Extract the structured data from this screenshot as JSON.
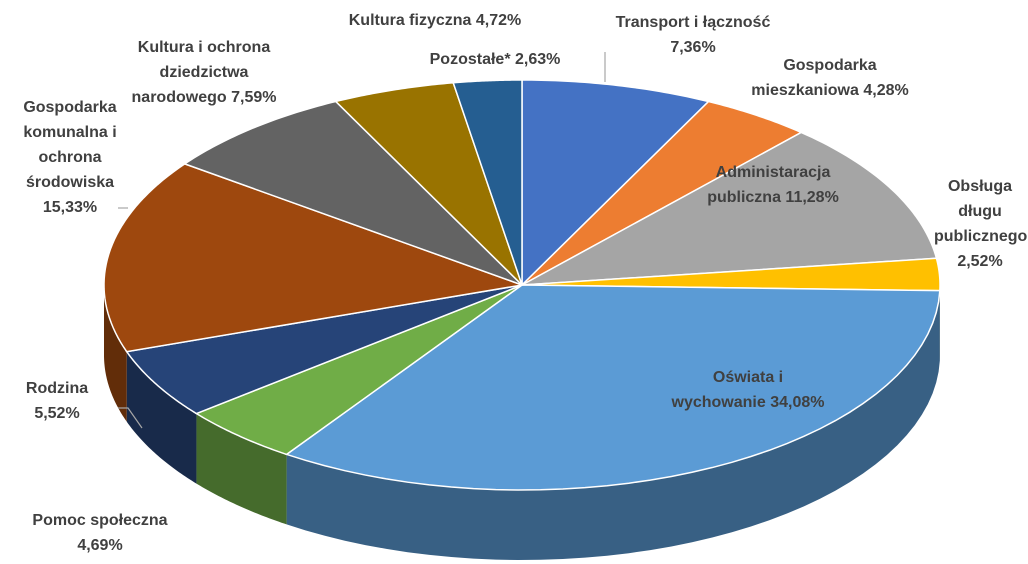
{
  "chart_data": {
    "type": "pie3d",
    "categories": [
      "Transport i łączność",
      "Gospodarka mieszkaniowa",
      "Administaracja publiczna",
      "Obsługa długu publicznego",
      "Oświata i wychowanie",
      "Pomoc społeczna",
      "Rodzina",
      "Gospodarka komunalna i ochrona środowiska",
      "Kultura i ochrona dziedzictwa narodowego",
      "Kultura fizyczna",
      "Pozostałe*"
    ],
    "values": [
      7.36,
      4.28,
      11.28,
      2.52,
      34.08,
      4.69,
      5.52,
      15.33,
      7.59,
      4.72,
      2.63
    ],
    "value_labels": [
      "7,36%",
      "4,28%",
      "11,28%",
      "2,52%",
      "34,08%",
      "4,69%",
      "5,52%",
      "15,33%",
      "7,59%",
      "4,72%",
      "2,63%"
    ],
    "colors": [
      "#4472c4",
      "#ed7d31",
      "#a5a5a5",
      "#ffc000",
      "#5b9bd5",
      "#70ad47",
      "#264478",
      "#9e480e",
      "#636363",
      "#997300",
      "#255e91"
    ]
  }
}
